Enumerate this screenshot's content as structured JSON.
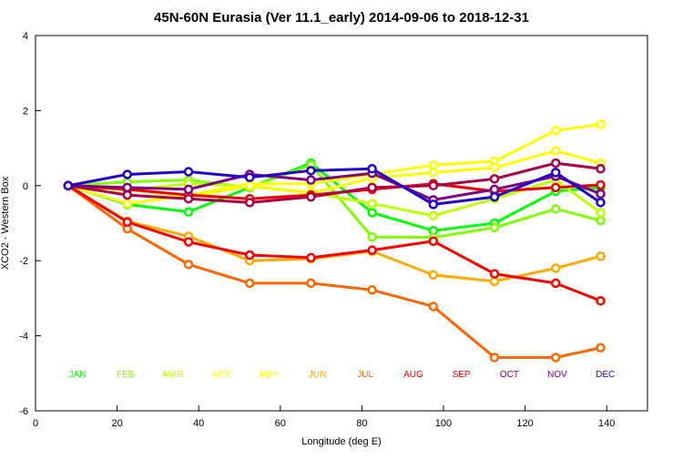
{
  "chart_data": {
    "type": "line",
    "title": "45N-60N Eurasia (Ver 11.1_early)   2014-09-06 to 2018-12-31",
    "xlabel": "Longitude (deg E)",
    "ylabel": "XCO2 - Western Box",
    "xlim": [
      0,
      150
    ],
    "ylim": [
      -6,
      4
    ],
    "xticks": [
      0,
      20,
      40,
      60,
      80,
      100,
      120,
      140
    ],
    "yticks": [
      -6,
      -4,
      -2,
      0,
      2,
      4
    ],
    "x": [
      8,
      22.5,
      37.5,
      52.5,
      67.5,
      82.5,
      97.5,
      112.5,
      127.5,
      138.5
    ],
    "series": [
      {
        "name": "JAN",
        "color": "#00ff00",
        "values": [
          0,
          -0.5,
          -0.7,
          -0.05,
          0.6,
          -0.72,
          -1.2,
          -1.0,
          -0.15,
          -0.05
        ]
      },
      {
        "name": "FEB",
        "color": "#7fff00",
        "values": [
          0,
          0.1,
          0.15,
          -0.05,
          0.55,
          -1.37,
          -1.38,
          -1.12,
          -0.62,
          -0.93
        ]
      },
      {
        "name": "MAR",
        "color": "#bfff00",
        "values": [
          0,
          -0.12,
          0.05,
          -0.02,
          -0.18,
          -0.48,
          -0.8,
          -0.35,
          0.15,
          -0.72
        ]
      },
      {
        "name": "APR",
        "color": "#ffff00",
        "values": [
          0,
          -0.48,
          -0.25,
          0.05,
          0.05,
          0.3,
          0.55,
          0.65,
          1.47,
          1.63
        ]
      },
      {
        "name": "MAY",
        "color": "#ffff00",
        "values": [
          0,
          -0.1,
          -0.3,
          0.0,
          -0.2,
          0.2,
          0.35,
          0.48,
          0.93,
          0.6
        ]
      },
      {
        "name": "JUN",
        "color": "#ffaa00",
        "values": [
          0,
          -0.95,
          -1.35,
          -2.0,
          -1.95,
          -1.75,
          -2.38,
          -2.55,
          -2.2,
          -1.88
        ]
      },
      {
        "name": "JUL",
        "color": "#ff6600",
        "values": [
          0,
          -1.15,
          -2.1,
          -2.6,
          -2.6,
          -2.78,
          -3.22,
          -4.58,
          -4.58,
          -4.32
        ]
      },
      {
        "name": "AUG",
        "color": "#ff0000",
        "values": [
          0,
          -0.97,
          -1.5,
          -1.85,
          -1.92,
          -1.72,
          -1.48,
          -2.35,
          -2.6,
          -3.07
        ]
      },
      {
        "name": "SEP",
        "color": "#ee0000",
        "values": [
          0,
          -0.1,
          -0.25,
          -0.35,
          -0.25,
          -0.1,
          0.05,
          -0.15,
          -0.05,
          0.02
        ]
      },
      {
        "name": "OCT",
        "color": "#aa0044",
        "values": [
          0,
          -0.25,
          -0.35,
          -0.45,
          -0.3,
          -0.05,
          0.0,
          0.18,
          0.6,
          0.45
        ]
      },
      {
        "name": "NOV",
        "color": "#800080",
        "values": [
          0,
          -0.05,
          -0.1,
          0.3,
          0.15,
          0.33,
          -0.38,
          -0.1,
          0.25,
          -0.22
        ]
      },
      {
        "name": "DEC",
        "color": "#2200cc",
        "values": [
          0,
          0.3,
          0.37,
          0.22,
          0.4,
          0.45,
          -0.5,
          -0.3,
          0.35,
          -0.45
        ]
      }
    ],
    "legend_placement": "bottom, inside plot",
    "grid": false
  }
}
